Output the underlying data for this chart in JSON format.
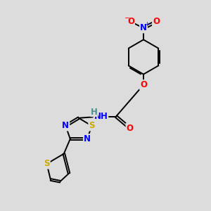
{
  "bg_color": "#dcdcdc",
  "bond_color": "#000000",
  "atom_colors": {
    "N": "#0000ff",
    "O": "#ff0000",
    "S": "#ccaa00",
    "H": "#4a9090",
    "C": "#000000"
  },
  "font_size": 8.5,
  "lw": 1.4
}
